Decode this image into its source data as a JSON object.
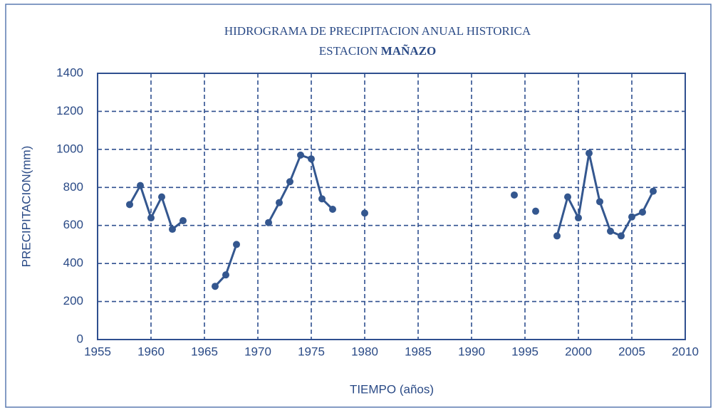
{
  "chart_data": {
    "type": "line",
    "title": "HIDROGRAMA DE PRECIPITACION ANUAL HISTORICA",
    "station_label": "ESTACION",
    "station": "MAÑAZO",
    "x_label": "TIEMPO (años)",
    "y_label": "PRECIPITACION(mm)",
    "x": [
      1958,
      1959,
      1960,
      1961,
      1962,
      1963,
      1964,
      1965,
      1966,
      1967,
      1968,
      1969,
      1970,
      1971,
      1972,
      1973,
      1974,
      1975,
      1976,
      1977,
      1978,
      1979,
      1980,
      1981,
      1982,
      1983,
      1984,
      1985,
      1986,
      1987,
      1988,
      1989,
      1990,
      1991,
      1992,
      1993,
      1994,
      1995,
      1996,
      1997,
      1998,
      1999,
      2000,
      2001,
      2002,
      2003,
      2004,
      2005,
      2006,
      2007
    ],
    "series": [
      {
        "name": "PRECIPITACION",
        "color": "#34578f",
        "values": [
          710,
          810,
          640,
          750,
          580,
          625,
          null,
          null,
          280,
          340,
          500,
          null,
          null,
          615,
          720,
          830,
          970,
          950,
          740,
          685,
          null,
          null,
          665,
          null,
          null,
          null,
          null,
          null,
          null,
          null,
          null,
          null,
          null,
          null,
          null,
          null,
          760,
          null,
          675,
          null,
          545,
          750,
          640,
          980,
          725,
          570,
          545,
          645,
          670,
          780
        ]
      }
    ],
    "xlim": [
      1955,
      2010
    ],
    "xticks": [
      1955,
      1960,
      1965,
      1970,
      1975,
      1980,
      1985,
      1990,
      1995,
      2000,
      2005,
      2010
    ],
    "ylim": [
      0,
      1400
    ],
    "yticks": [
      0,
      200,
      400,
      600,
      800,
      1000,
      1200,
      1400
    ],
    "grid": true
  }
}
